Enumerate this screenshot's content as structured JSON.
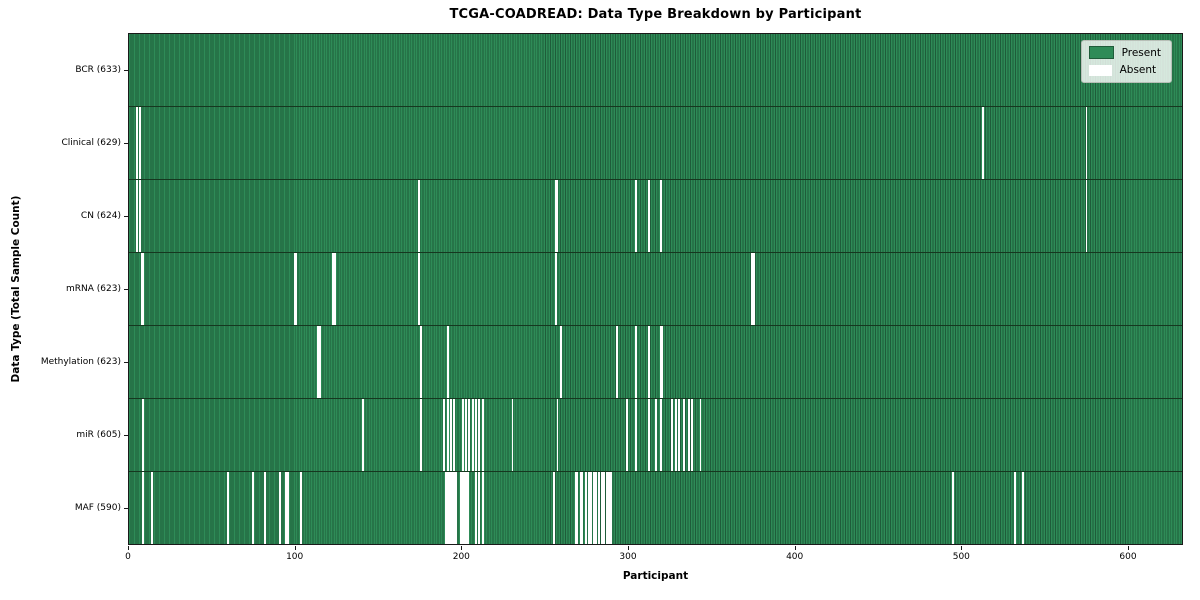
{
  "title": "TCGA-COADREAD: Data Type Breakdown by Participant",
  "x_axis": {
    "label": "Participant",
    "ticks": [
      0,
      100,
      200,
      300,
      400,
      500,
      600
    ]
  },
  "y_axis": {
    "label": "Data Type (Total Sample Count)"
  },
  "legend": {
    "present_label": "Present",
    "absent_label": "Absent"
  },
  "colors": {
    "present": "#2e8b57",
    "present_dark": "#1f5c3a",
    "absent": "#ffffff",
    "axis": "#1a1a1a"
  },
  "chart_data": {
    "type": "heatmap",
    "title": "TCGA-COADREAD: Data Type Breakdown by Participant",
    "xlabel": "Participant",
    "ylabel": "Data Type (Total Sample Count)",
    "xlim": [
      0,
      633
    ],
    "n_participants": 633,
    "legend_position": "upper right",
    "legend_entries": [
      "Present",
      "Absent"
    ],
    "value_encoding": {
      "present": "seagreen bar",
      "absent": "white gap"
    },
    "rows": [
      {
        "name": "BCR",
        "label": "BCR (633)",
        "present_count": 633,
        "absent_participants": []
      },
      {
        "name": "Clinical",
        "label": "Clinical (629)",
        "present_count": 629,
        "absent_participants": [
          4,
          6,
          513,
          575
        ]
      },
      {
        "name": "CN",
        "label": "CN (624)",
        "present_count": 624,
        "absent_participants": [
          4,
          6,
          174,
          256,
          257,
          304,
          312,
          319,
          575
        ]
      },
      {
        "name": "mRNA",
        "label": "mRNA (623)",
        "present_count": 623,
        "absent_participants": [
          7,
          8,
          99,
          100,
          122,
          123,
          174,
          256,
          374,
          375
        ]
      },
      {
        "name": "Methylation",
        "label": "Methylation (623)",
        "present_count": 623,
        "absent_participants": [
          113,
          114,
          175,
          191,
          259,
          293,
          304,
          312,
          319,
          320
        ]
      },
      {
        "name": "miR",
        "label": "miR (605)",
        "present_count": 605,
        "absent_participants": [
          8,
          140,
          175,
          189,
          191,
          193,
          195,
          200,
          202,
          204,
          206,
          208,
          210,
          212,
          230,
          257,
          299,
          304,
          312,
          316,
          319,
          326,
          328,
          330,
          333,
          336,
          338,
          343
        ]
      },
      {
        "name": "MAF",
        "label": "MAF (590)",
        "present_count": 590,
        "absent_participants": [
          8,
          13,
          59,
          74,
          81,
          90,
          94,
          95,
          103,
          190,
          191,
          192,
          193,
          194,
          195,
          196,
          199,
          200,
          201,
          202,
          203,
          208,
          210,
          212,
          255,
          268,
          269,
          271,
          272,
          274,
          276,
          277,
          279,
          280,
          282,
          284,
          285,
          287,
          288,
          289,
          495,
          532,
          537
        ]
      }
    ]
  }
}
